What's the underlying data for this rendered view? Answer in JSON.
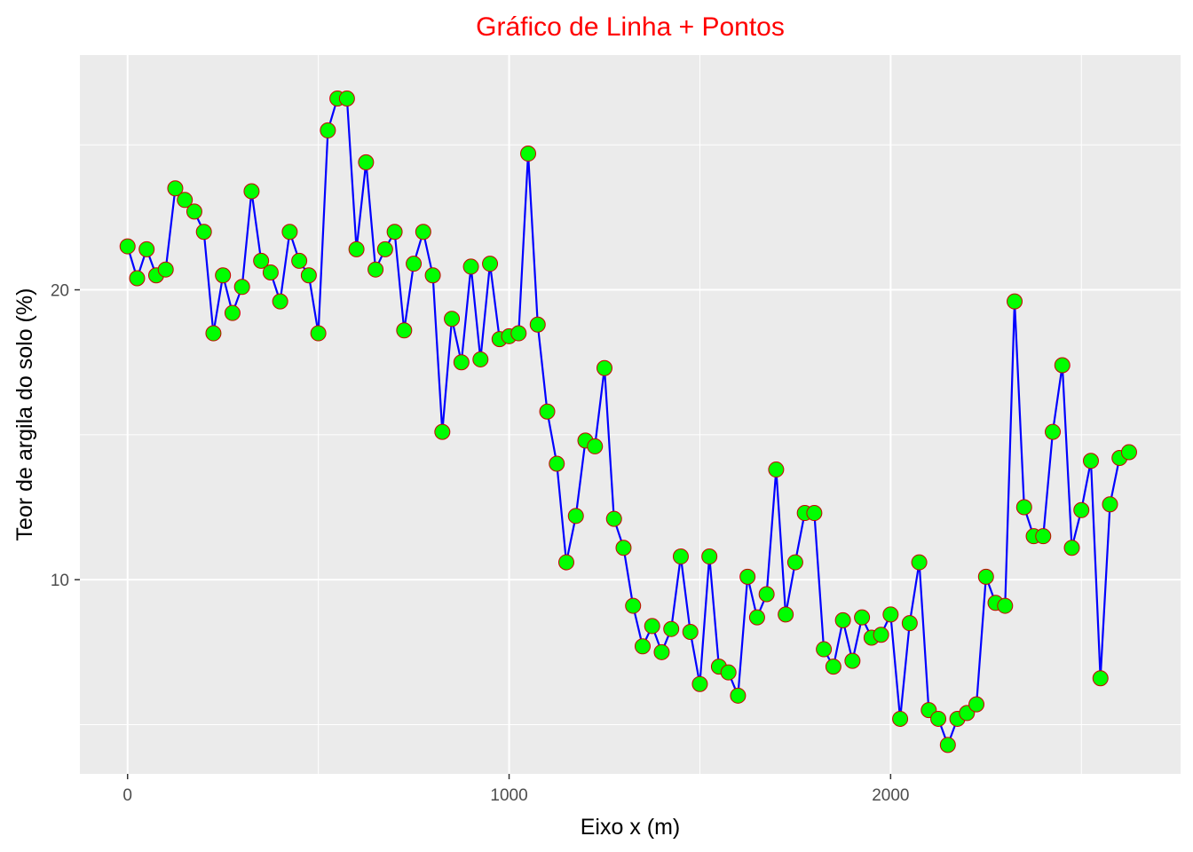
{
  "chart_data": {
    "type": "line",
    "title": "Gráfico de Linha + Pontos",
    "xlabel": "Eixo x (m)",
    "ylabel": "Teor de argila do solo (%)",
    "xlim": [
      -125,
      2760
    ],
    "ylim": [
      3.3,
      28.1
    ],
    "x_ticks": [
      0,
      1000,
      2000
    ],
    "x_tick_labels": [
      "0",
      "1000",
      "2000"
    ],
    "y_ticks": [
      10,
      20
    ],
    "y_tick_labels": [
      "10",
      "20"
    ],
    "y_minor_ticks": [
      5,
      15,
      25
    ],
    "x_minor_ticks": [
      500,
      1500,
      2500
    ],
    "grid": true,
    "legend": "none",
    "colors": {
      "panel": "#ebebeb",
      "grid": "#ffffff",
      "line": "#0000ff",
      "point_fill": "#00ff00",
      "point_stroke": "#cc0000",
      "title": "#ff0000"
    },
    "series": [
      {
        "x": [
          0,
          25,
          50,
          75,
          100,
          125,
          150,
          175,
          200,
          225,
          250,
          275,
          300,
          325,
          350,
          375,
          400,
          425,
          450,
          475,
          500,
          525,
          550,
          575,
          600,
          625,
          650,
          675,
          700,
          725,
          750,
          775,
          800,
          825,
          850,
          875,
          900,
          925,
          950,
          975,
          1000,
          1025,
          1050,
          1075,
          1100,
          1125,
          1150,
          1175,
          1200,
          1225,
          1250,
          1275,
          1300,
          1325,
          1350,
          1375,
          1400,
          1425,
          1450,
          1475,
          1500,
          1525,
          1550,
          1575,
          1600,
          1625,
          1650,
          1675,
          1700,
          1725,
          1750,
          1775,
          1800,
          1825,
          1850,
          1875,
          1900,
          1925,
          1950,
          1975,
          2000,
          2025,
          2050,
          2075,
          2100,
          2125,
          2150,
          2175,
          2200,
          2225,
          2250,
          2275,
          2300,
          2325,
          2350,
          2375,
          2400,
          2425,
          2450,
          2475,
          2500,
          2525,
          2550,
          2575,
          2600,
          2625
        ],
        "values": [
          21.5,
          20.4,
          21.4,
          20.5,
          20.7,
          23.5,
          23.1,
          22.7,
          22.0,
          18.5,
          20.5,
          19.2,
          20.1,
          23.4,
          21.0,
          20.6,
          19.6,
          22.0,
          21.0,
          20.5,
          18.5,
          25.5,
          26.6,
          26.6,
          21.4,
          24.4,
          20.7,
          21.4,
          22.0,
          18.6,
          20.9,
          22.0,
          20.5,
          15.1,
          19.0,
          17.5,
          20.8,
          17.6,
          20.9,
          18.3,
          18.4,
          18.5,
          24.7,
          18.8,
          15.8,
          14.0,
          10.6,
          12.2,
          14.8,
          14.6,
          17.3,
          12.1,
          11.1,
          9.1,
          7.7,
          8.4,
          7.5,
          8.3,
          10.8,
          8.2,
          6.4,
          10.8,
          7.0,
          6.8,
          6.0,
          10.1,
          8.7,
          9.5,
          13.8,
          8.8,
          10.6,
          12.3,
          12.3,
          7.6,
          7.0,
          8.6,
          7.2,
          8.7,
          8.0,
          8.1,
          8.8,
          5.2,
          8.5,
          10.6,
          5.5,
          5.2,
          4.3,
          5.2,
          5.4,
          5.7,
          10.1,
          9.2,
          9.1,
          19.6,
          12.5,
          11.5,
          11.5,
          15.1,
          17.4,
          11.1,
          12.4,
          14.1,
          6.6,
          12.6,
          14.2,
          14.4
        ]
      }
    ]
  }
}
